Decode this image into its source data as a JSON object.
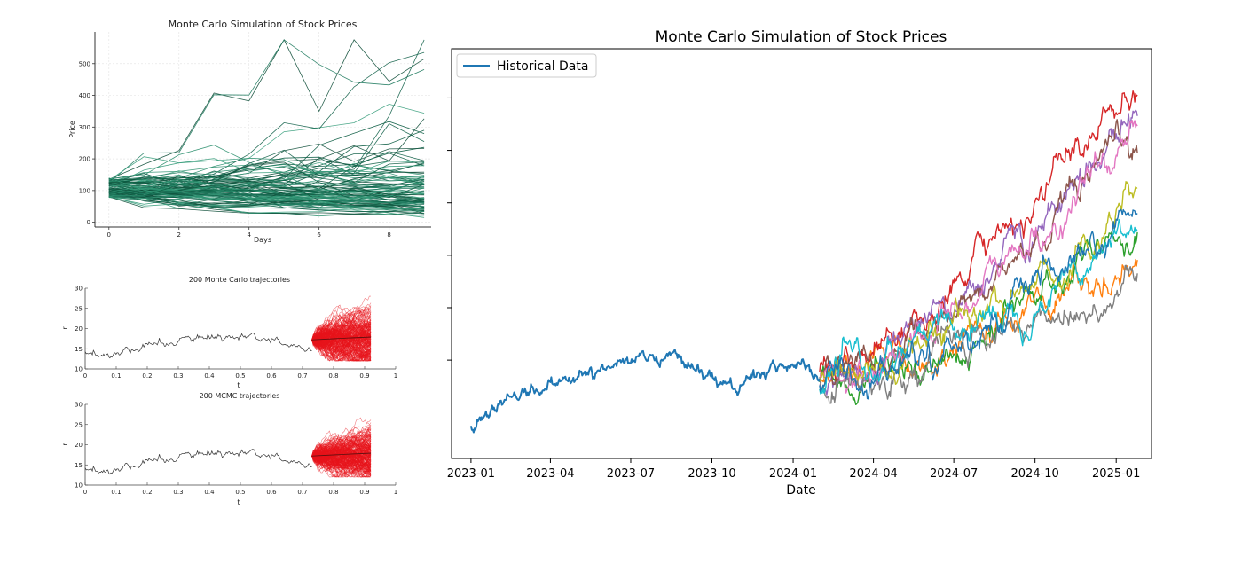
{
  "chart_data": [
    {
      "type": "line",
      "title": "Monte Carlo Simulation of Stock Prices",
      "xlabel": "Days",
      "ylabel": "Price",
      "xlim": [
        -0.4,
        9.2
      ],
      "ylim": [
        -15,
        600
      ],
      "x_ticks": [
        "0",
        "2",
        "4",
        "6",
        "8"
      ],
      "y_ticks": [
        "0",
        "100",
        "200",
        "300",
        "400",
        "500"
      ],
      "grid": true,
      "series_count": 100,
      "series_color": "#1e7a5e",
      "start_price": 100
    },
    {
      "type": "line",
      "title": "200 Monte Carlo trajectories",
      "xlabel": "t",
      "ylabel": "r",
      "xlim": [
        0,
        1
      ],
      "ylim": [
        10,
        30
      ],
      "x_ticks": [
        "0",
        "0.1",
        "0.2",
        "0.3",
        "0.4",
        "0.5",
        "0.6",
        "0.7",
        "0.8",
        "0.9",
        "1"
      ],
      "y_ticks": [
        "10",
        "15",
        "20",
        "25",
        "30"
      ],
      "history_end_t": 0.73,
      "projection_end_t": 0.92,
      "history_color": "#333333",
      "trajectory_color": "#e8141c",
      "trajectory_count": 200
    },
    {
      "type": "line",
      "title": "200 MCMC trajectories",
      "xlabel": "t",
      "ylabel": "r",
      "xlim": [
        0,
        1
      ],
      "ylim": [
        10,
        30
      ],
      "x_ticks": [
        "0",
        "0.1",
        "0.2",
        "0.3",
        "0.4",
        "0.5",
        "0.6",
        "0.7",
        "0.8",
        "0.9",
        "1"
      ],
      "y_ticks": [
        "10",
        "15",
        "20",
        "25",
        "30"
      ],
      "history_end_t": 0.73,
      "projection_end_t": 0.92,
      "history_color": "#333333",
      "trajectory_color": "#e8141c",
      "trajectory_count": 200
    },
    {
      "type": "line",
      "title": "Monte Carlo Simulation of Stock Prices",
      "xlabel": "Date",
      "ylabel": "",
      "x_ticks": [
        "2023-01",
        "2023-04",
        "2023-07",
        "2023-10",
        "2024-01",
        "2024-04",
        "2024-07",
        "2024-10",
        "2025-01"
      ],
      "xlim": [
        "2022-12-10",
        "2025-02-10"
      ],
      "legend": {
        "label": "Historical Data",
        "position": "upper-left"
      },
      "historical": {
        "color": "#1f77b4",
        "start": "2023-01-01",
        "end": "2024-01-31"
      },
      "simulation_end": "2025-01-25",
      "simulation_colors": [
        "#ff7f0e",
        "#2ca02c",
        "#d62728",
        "#9467bd",
        "#8c564b",
        "#e377c2",
        "#7f7f7f",
        "#bcbd22",
        "#17becf",
        "#1f77b4"
      ]
    }
  ]
}
